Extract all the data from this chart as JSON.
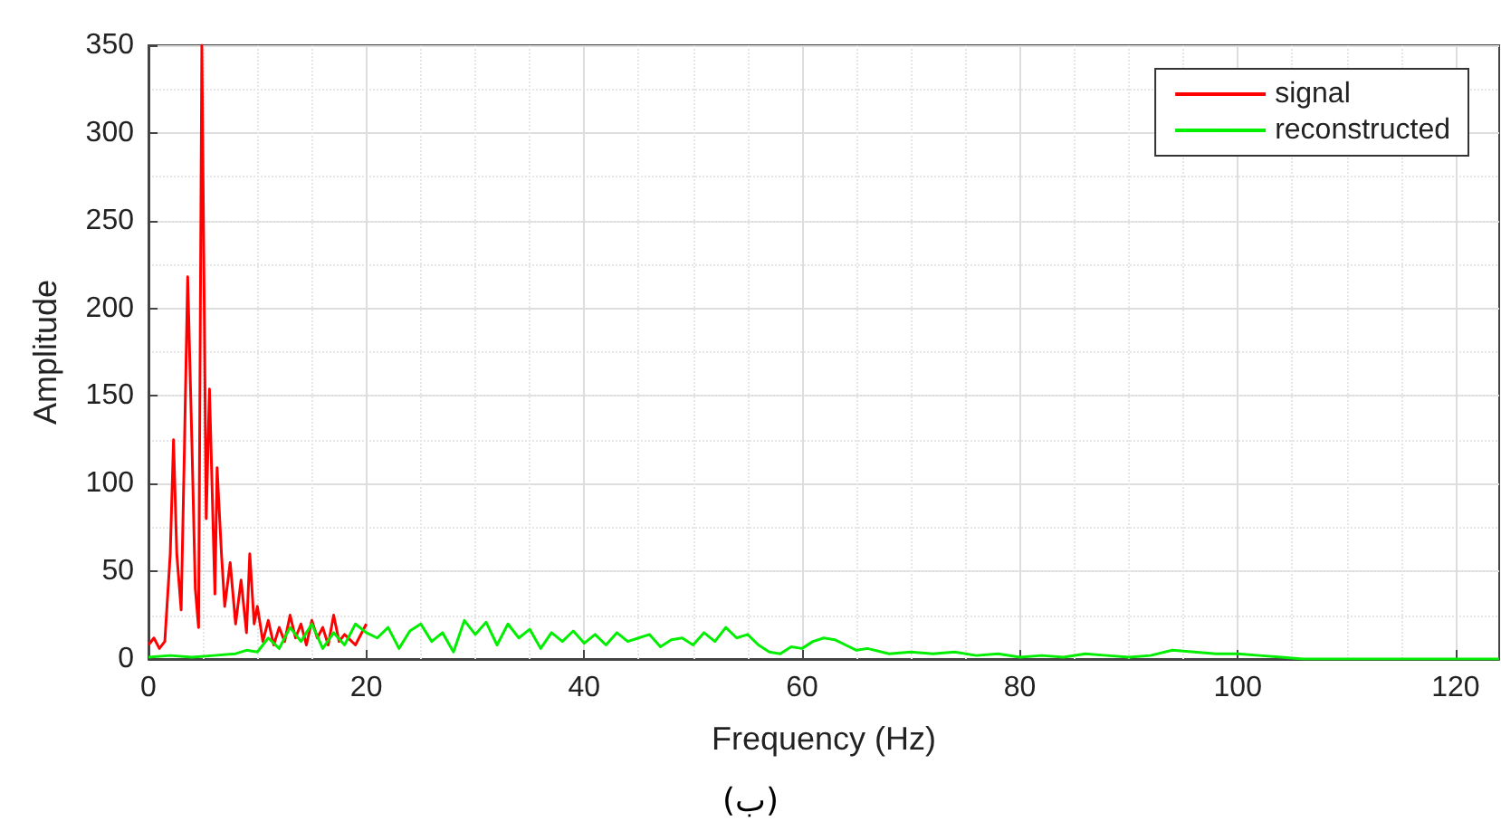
{
  "chart_data": {
    "type": "line",
    "xlabel": "Frequency (Hz)",
    "ylabel": "Amplitude",
    "annotations": [
      "(ب)"
    ],
    "xlim": [
      0,
      124
    ],
    "xticks": [
      0,
      20,
      40,
      60,
      80,
      100,
      120
    ],
    "ylim": [
      0,
      350
    ],
    "yticks": [
      0,
      50,
      100,
      150,
      200,
      250,
      300,
      350
    ],
    "grid": true,
    "legend": "top right",
    "marker": "none",
    "line_style": "solid",
    "series": [
      {
        "name": "signal",
        "color": "#ff0000",
        "x": [
          0,
          0.5,
          1,
          1.5,
          2,
          2.3,
          2.6,
          3,
          3.3,
          3.6,
          4,
          4.3,
          4.6,
          4.9,
          5.3,
          5.6,
          6.1,
          6.3,
          6.7,
          7,
          7.5,
          8,
          8.5,
          9,
          9.3,
          9.7,
          10,
          10.5,
          11,
          11.5,
          12,
          12.5,
          13,
          13.5,
          14,
          14.5,
          15,
          15.5,
          16,
          16.5,
          17,
          17.5,
          18,
          19,
          20
        ],
        "values": [
          8,
          12,
          6,
          10,
          60,
          125,
          60,
          28,
          120,
          218,
          120,
          40,
          18,
          350,
          80,
          154,
          37,
          109,
          60,
          30,
          55,
          20,
          45,
          15,
          60,
          20,
          30,
          10,
          22,
          8,
          18,
          10,
          25,
          12,
          20,
          8,
          22,
          12,
          18,
          8,
          25,
          10,
          14,
          8,
          20
        ]
      },
      {
        "name": "reconstructed",
        "color": "#00ee00",
        "x": [
          0,
          2,
          4,
          6,
          8,
          9,
          10,
          11,
          12,
          13,
          14,
          15,
          16,
          17,
          18,
          19,
          20,
          21,
          22,
          23,
          24,
          25,
          26,
          27,
          28,
          29,
          30,
          31,
          32,
          33,
          34,
          35,
          36,
          37,
          38,
          39,
          40,
          41,
          42,
          43,
          44,
          45,
          46,
          47,
          48,
          49,
          50,
          51,
          52,
          53,
          54,
          55,
          56,
          57,
          58,
          59,
          60,
          61,
          62,
          63,
          64,
          65,
          66,
          68,
          70,
          72,
          74,
          76,
          78,
          80,
          82,
          84,
          86,
          88,
          90,
          92,
          94,
          96,
          98,
          100,
          102,
          104,
          106,
          110,
          115,
          120,
          124
        ],
        "values": [
          1,
          2,
          1,
          2,
          3,
          5,
          4,
          12,
          6,
          18,
          10,
          20,
          6,
          15,
          8,
          20,
          15,
          12,
          18,
          6,
          16,
          20,
          10,
          15,
          4,
          22,
          14,
          21,
          8,
          20,
          12,
          17,
          6,
          15,
          10,
          16,
          9,
          14,
          8,
          15,
          10,
          12,
          14,
          7,
          11,
          12,
          8,
          15,
          10,
          18,
          12,
          14,
          8,
          4,
          3,
          7,
          6,
          10,
          12,
          11,
          8,
          5,
          6,
          3,
          4,
          3,
          4,
          2,
          3,
          1,
          2,
          1,
          3,
          2,
          1,
          2,
          5,
          4,
          3,
          3,
          2,
          1,
          0,
          0,
          0,
          0,
          0
        ]
      }
    ]
  }
}
